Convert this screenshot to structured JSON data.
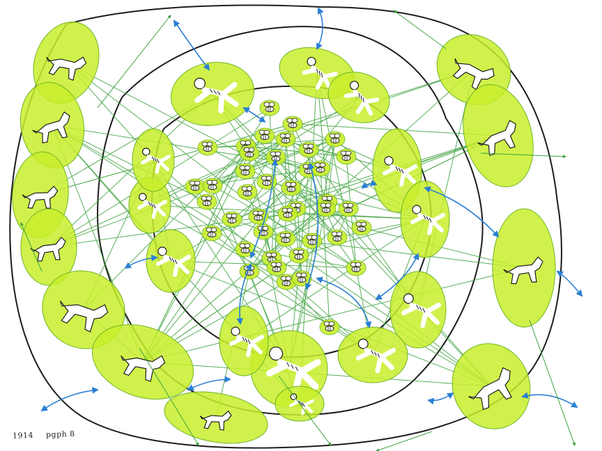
{
  "caption": {
    "year": "1914",
    "label": "pgph 8"
  },
  "colors": {
    "ink": "#1c1c1c",
    "fill": "#c8ef2c",
    "fill_dark": "#a8d820",
    "fill_stroke": "#6fb524",
    "connector": "#3ca13c",
    "arrow": "#2a7fd4"
  },
  "figures": {
    "outer_ring": "dog",
    "middle_ring": "runner",
    "inner_cluster": "bee"
  }
}
